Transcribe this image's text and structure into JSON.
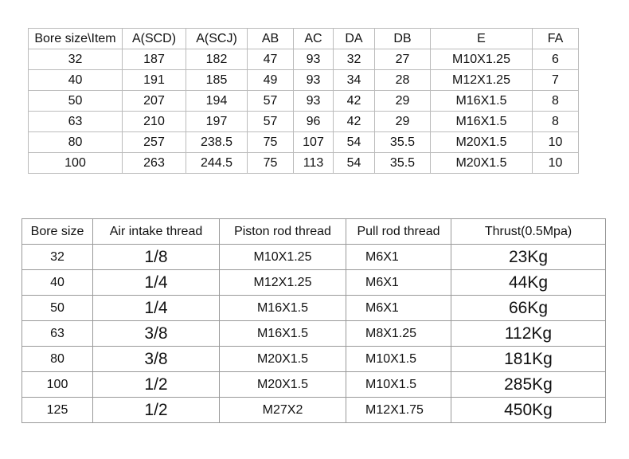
{
  "table1": {
    "header": [
      "Bore size\\Item",
      "A(SCD)",
      "A(SCJ)",
      "AB",
      "AC",
      "DA",
      "DB",
      "E",
      "FA"
    ],
    "rows": [
      [
        "32",
        "187",
        "182",
        "47",
        "93",
        "32",
        "27",
        "M10X1.25",
        "6"
      ],
      [
        "40",
        "191",
        "185",
        "49",
        "93",
        "34",
        "28",
        "M12X1.25",
        "7"
      ],
      [
        "50",
        "207",
        "194",
        "57",
        "93",
        "42",
        "29",
        "M16X1.5",
        "8"
      ],
      [
        "63",
        "210",
        "197",
        "57",
        "96",
        "42",
        "29",
        "M16X1.5",
        "8"
      ],
      [
        "80",
        "257",
        "238.5",
        "75",
        "107",
        "54",
        "35.5",
        "M20X1.5",
        "10"
      ],
      [
        "100",
        "263",
        "244.5",
        "75",
        "113",
        "54",
        "35.5",
        "M20X1.5",
        "10"
      ]
    ]
  },
  "table2": {
    "header": [
      "Bore size",
      "Air intake thread",
      "Piston rod thread",
      "Pull rod thread",
      "Thrust(0.5Mpa)"
    ],
    "rows": [
      [
        "32",
        "1/8",
        "M10X1.25",
        "M6X1",
        "23Kg"
      ],
      [
        "40",
        "1/4",
        "M12X1.25",
        "M6X1",
        "44Kg"
      ],
      [
        "50",
        "1/4",
        "M16X1.5",
        "M6X1",
        "66Kg"
      ],
      [
        "63",
        "3/8",
        "M16X1.5",
        "M8X1.25",
        "112Kg"
      ],
      [
        "80",
        "3/8",
        "M20X1.5",
        "M10X1.5",
        "181Kg"
      ],
      [
        "100",
        "1/2",
        "M20X1.5",
        "M10X1.5",
        "285Kg"
      ],
      [
        "125",
        "1/2",
        "M27X2",
        "M12X1.75",
        "450Kg"
      ]
    ]
  }
}
